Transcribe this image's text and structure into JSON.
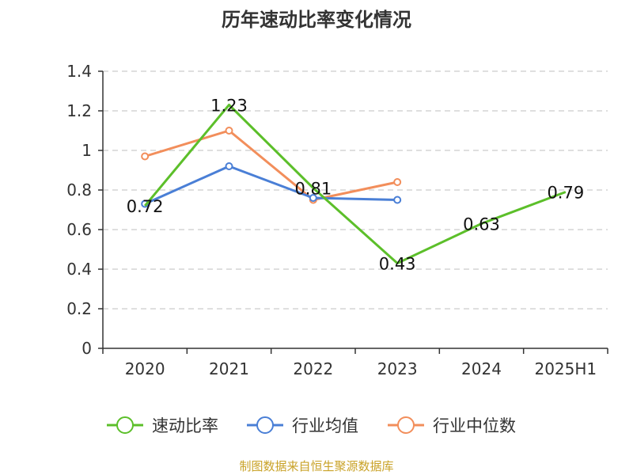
{
  "chart_data": {
    "type": "line",
    "title": "历年速动比率变化情况",
    "categories": [
      "2020",
      "2021",
      "2022",
      "2023",
      "2024",
      "2025H1"
    ],
    "ylim": [
      0,
      1.4
    ],
    "yticks": [
      "0",
      "0.2",
      "0.4",
      "0.6",
      "0.8",
      "1",
      "1.2",
      "1.4"
    ],
    "grid": true,
    "legend_position": "bottom",
    "series": [
      {
        "name": "速动比率",
        "color": "#5cbf2a",
        "values": [
          0.72,
          1.23,
          0.81,
          0.43,
          0.63,
          0.79
        ],
        "labels": [
          "0.72",
          "1.23",
          "0.81",
          "0.43",
          "0.63",
          "0.79"
        ],
        "markers": false
      },
      {
        "name": "行业均值",
        "color": "#4a7fd6",
        "values": [
          0.73,
          0.92,
          0.76,
          0.75,
          null,
          null
        ],
        "markers": true
      },
      {
        "name": "行业中位数",
        "color": "#f28e5b",
        "values": [
          0.97,
          1.1,
          0.75,
          0.84,
          null,
          null
        ],
        "markers": true
      }
    ]
  },
  "source_text": "制图数据来自恒生聚源数据库"
}
